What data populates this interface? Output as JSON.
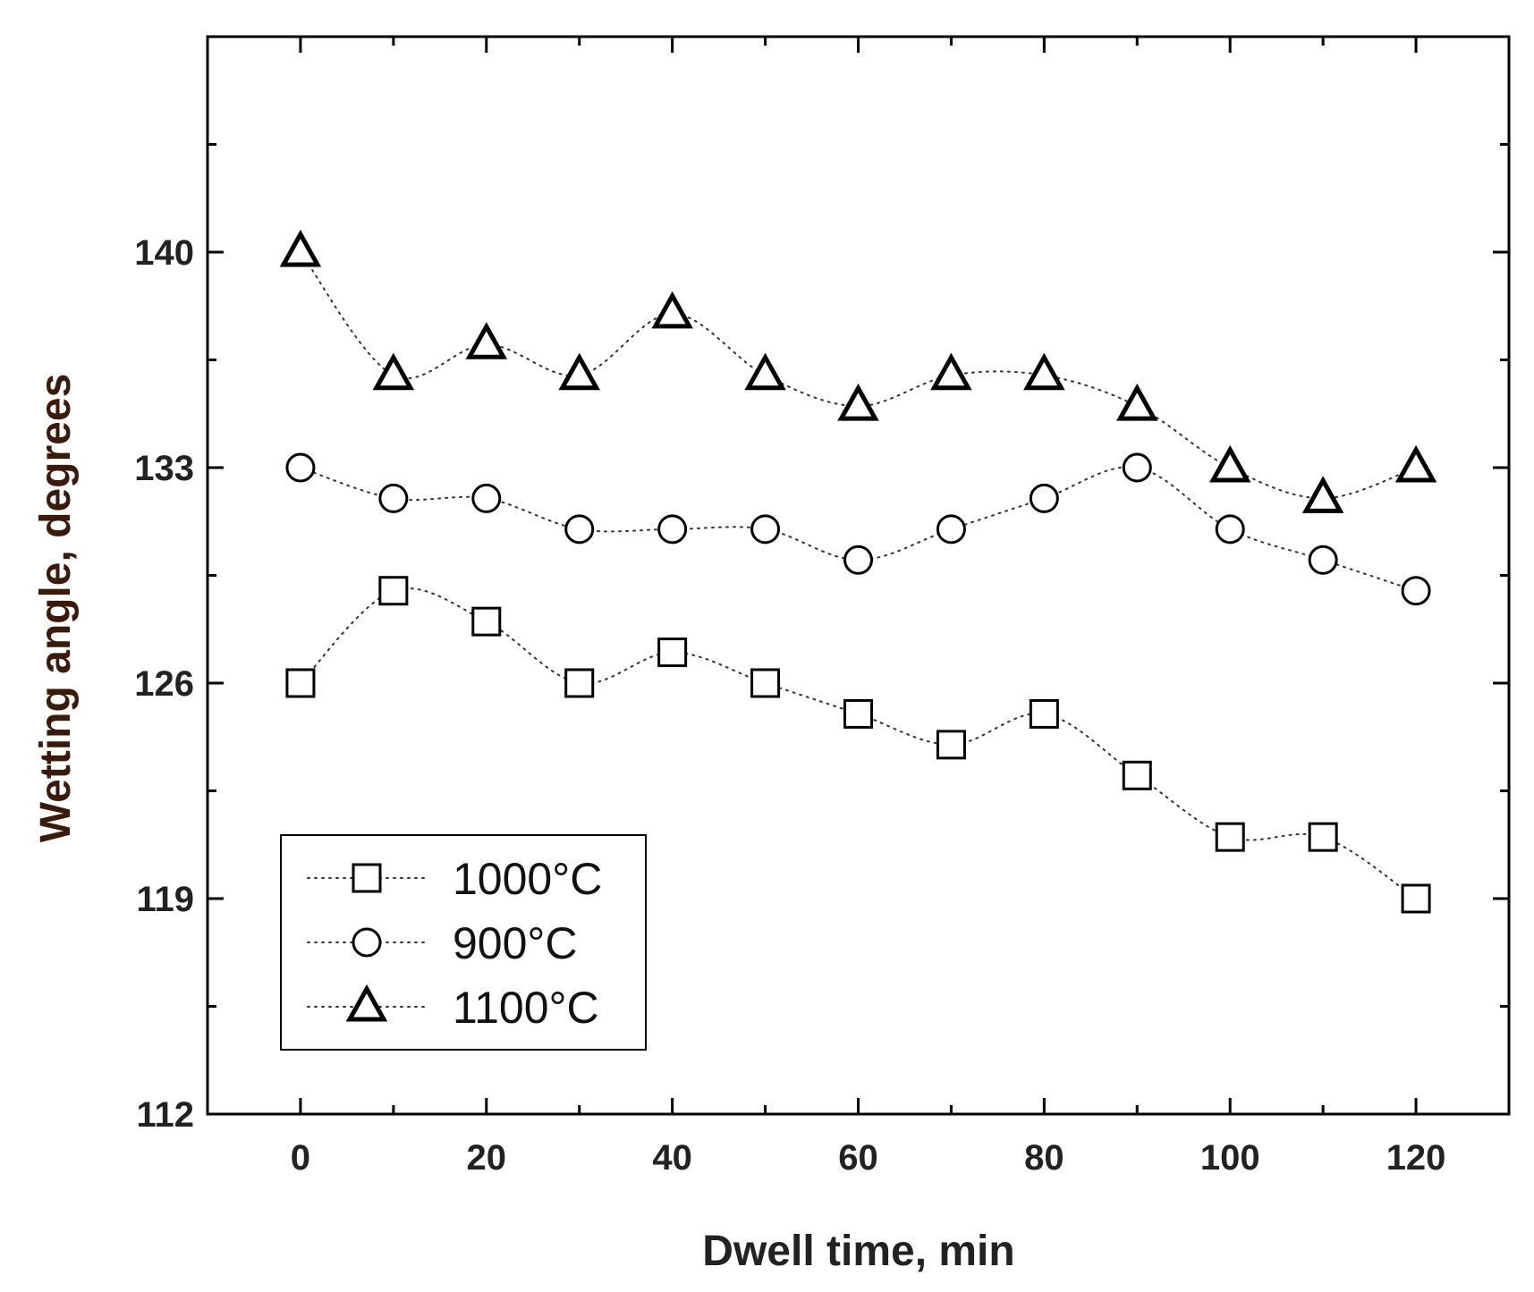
{
  "chart_data": {
    "type": "line",
    "xlabel": "Dwell time, min",
    "ylabel": "Wetting angle, degrees",
    "xlim": [
      -10,
      130
    ],
    "ylim": [
      112,
      147
    ],
    "xticks": [
      0,
      20,
      40,
      60,
      80,
      100,
      120
    ],
    "yticks": [
      112,
      119,
      126,
      133,
      140
    ],
    "grid": false,
    "legend_position": "bottom-left",
    "x": [
      0,
      10,
      20,
      30,
      40,
      50,
      60,
      70,
      80,
      90,
      100,
      110,
      120
    ],
    "series": [
      {
        "name": "1000°C",
        "marker": "square",
        "line": "dotted",
        "values": [
          126,
          129,
          128,
          126,
          127,
          126,
          125,
          124,
          125,
          123,
          121,
          121,
          119
        ]
      },
      {
        "name": "900°C",
        "marker": "circle",
        "line": "dotted",
        "values": [
          133,
          132,
          132,
          131,
          131,
          131,
          130,
          131,
          132,
          133,
          131,
          130,
          129
        ]
      },
      {
        "name": "1100°C",
        "marker": "triangle",
        "line": "dotted",
        "values": [
          140,
          136,
          137,
          136,
          138,
          136,
          135,
          136,
          136,
          135,
          133,
          132,
          133
        ]
      }
    ]
  }
}
